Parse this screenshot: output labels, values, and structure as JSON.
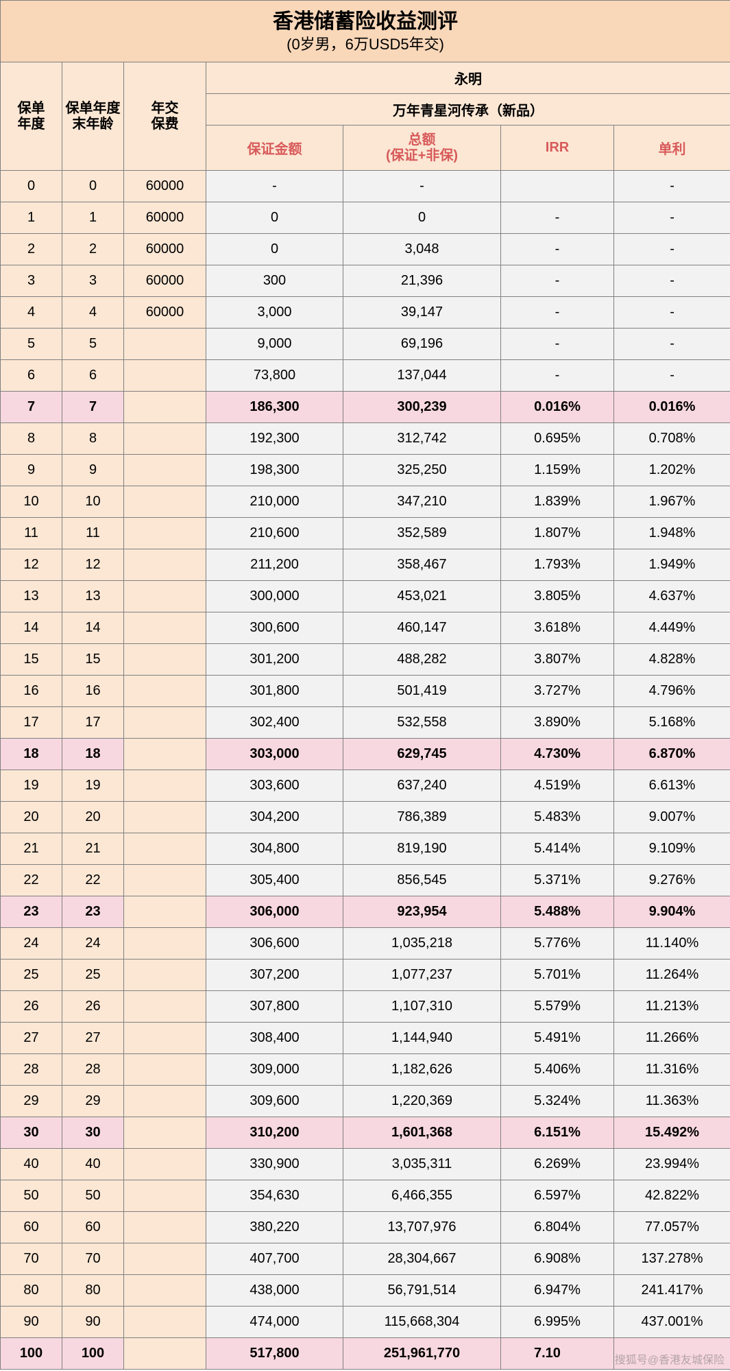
{
  "title": {
    "main": "香港储蓄险收益测评",
    "sub": "(0岁男，6万USD5年交)"
  },
  "headers": {
    "col1": "保单\n年度",
    "col2": "保单年度末年龄",
    "col3": "年交\n保费",
    "company": "永明",
    "product": "万年青星河传承（新品）",
    "m1": "保证金额",
    "m2a": "总额",
    "m2b": "(保证+非保)",
    "m3": "IRR",
    "m4": "单利"
  },
  "colors": {
    "title_bg": "#f9d7b9",
    "header_bg": "#fbe7d4",
    "pink_bg": "#f8d8e0",
    "normal_bg": "#f2f2f2",
    "border": "#808080",
    "red_text": "#d85a5a"
  },
  "rows": [
    {
      "y": "0",
      "a": "0",
      "p": "60000",
      "g": "-",
      "t": "-",
      "irr": "",
      "si": "-",
      "hl": false
    },
    {
      "y": "1",
      "a": "1",
      "p": "60000",
      "g": "0",
      "t": "0",
      "irr": "-",
      "si": "-",
      "hl": false
    },
    {
      "y": "2",
      "a": "2",
      "p": "60000",
      "g": "0",
      "t": "3,048",
      "irr": "-",
      "si": "-",
      "hl": false
    },
    {
      "y": "3",
      "a": "3",
      "p": "60000",
      "g": "300",
      "t": "21,396",
      "irr": "-",
      "si": "-",
      "hl": false
    },
    {
      "y": "4",
      "a": "4",
      "p": "60000",
      "g": "3,000",
      "t": "39,147",
      "irr": "-",
      "si": "-",
      "hl": false
    },
    {
      "y": "5",
      "a": "5",
      "p": "",
      "g": "9,000",
      "t": "69,196",
      "irr": "-",
      "si": "-",
      "hl": false
    },
    {
      "y": "6",
      "a": "6",
      "p": "",
      "g": "73,800",
      "t": "137,044",
      "irr": "-",
      "si": "-",
      "hl": false
    },
    {
      "y": "7",
      "a": "7",
      "p": "",
      "g": "186,300",
      "t": "300,239",
      "irr": "0.016%",
      "si": "0.016%",
      "hl": true
    },
    {
      "y": "8",
      "a": "8",
      "p": "",
      "g": "192,300",
      "t": "312,742",
      "irr": "0.695%",
      "si": "0.708%",
      "hl": false
    },
    {
      "y": "9",
      "a": "9",
      "p": "",
      "g": "198,300",
      "t": "325,250",
      "irr": "1.159%",
      "si": "1.202%",
      "hl": false
    },
    {
      "y": "10",
      "a": "10",
      "p": "",
      "g": "210,000",
      "t": "347,210",
      "irr": "1.839%",
      "si": "1.967%",
      "hl": false
    },
    {
      "y": "11",
      "a": "11",
      "p": "",
      "g": "210,600",
      "t": "352,589",
      "irr": "1.807%",
      "si": "1.948%",
      "hl": false
    },
    {
      "y": "12",
      "a": "12",
      "p": "",
      "g": "211,200",
      "t": "358,467",
      "irr": "1.793%",
      "si": "1.949%",
      "hl": false
    },
    {
      "y": "13",
      "a": "13",
      "p": "",
      "g": "300,000",
      "t": "453,021",
      "irr": "3.805%",
      "si": "4.637%",
      "hl": false
    },
    {
      "y": "14",
      "a": "14",
      "p": "",
      "g": "300,600",
      "t": "460,147",
      "irr": "3.618%",
      "si": "4.449%",
      "hl": false
    },
    {
      "y": "15",
      "a": "15",
      "p": "",
      "g": "301,200",
      "t": "488,282",
      "irr": "3.807%",
      "si": "4.828%",
      "hl": false
    },
    {
      "y": "16",
      "a": "16",
      "p": "",
      "g": "301,800",
      "t": "501,419",
      "irr": "3.727%",
      "si": "4.796%",
      "hl": false
    },
    {
      "y": "17",
      "a": "17",
      "p": "",
      "g": "302,400",
      "t": "532,558",
      "irr": "3.890%",
      "si": "5.168%",
      "hl": false
    },
    {
      "y": "18",
      "a": "18",
      "p": "",
      "g": "303,000",
      "t": "629,745",
      "irr": "4.730%",
      "si": "6.870%",
      "hl": true
    },
    {
      "y": "19",
      "a": "19",
      "p": "",
      "g": "303,600",
      "t": "637,240",
      "irr": "4.519%",
      "si": "6.613%",
      "hl": false
    },
    {
      "y": "20",
      "a": "20",
      "p": "",
      "g": "304,200",
      "t": "786,389",
      "irr": "5.483%",
      "si": "9.007%",
      "hl": false
    },
    {
      "y": "21",
      "a": "21",
      "p": "",
      "g": "304,800",
      "t": "819,190",
      "irr": "5.414%",
      "si": "9.109%",
      "hl": false
    },
    {
      "y": "22",
      "a": "22",
      "p": "",
      "g": "305,400",
      "t": "856,545",
      "irr": "5.371%",
      "si": "9.276%",
      "hl": false
    },
    {
      "y": "23",
      "a": "23",
      "p": "",
      "g": "306,000",
      "t": "923,954",
      "irr": "5.488%",
      "si": "9.904%",
      "hl": true
    },
    {
      "y": "24",
      "a": "24",
      "p": "",
      "g": "306,600",
      "t": "1,035,218",
      "irr": "5.776%",
      "si": "11.140%",
      "hl": false
    },
    {
      "y": "25",
      "a": "25",
      "p": "",
      "g": "307,200",
      "t": "1,077,237",
      "irr": "5.701%",
      "si": "11.264%",
      "hl": false
    },
    {
      "y": "26",
      "a": "26",
      "p": "",
      "g": "307,800",
      "t": "1,107,310",
      "irr": "5.579%",
      "si": "11.213%",
      "hl": false
    },
    {
      "y": "27",
      "a": "27",
      "p": "",
      "g": "308,400",
      "t": "1,144,940",
      "irr": "5.491%",
      "si": "11.266%",
      "hl": false
    },
    {
      "y": "28",
      "a": "28",
      "p": "",
      "g": "309,000",
      "t": "1,182,626",
      "irr": "5.406%",
      "si": "11.316%",
      "hl": false
    },
    {
      "y": "29",
      "a": "29",
      "p": "",
      "g": "309,600",
      "t": "1,220,369",
      "irr": "5.324%",
      "si": "11.363%",
      "hl": false
    },
    {
      "y": "30",
      "a": "30",
      "p": "",
      "g": "310,200",
      "t": "1,601,368",
      "irr": "6.151%",
      "si": "15.492%",
      "hl": true
    },
    {
      "y": "40",
      "a": "40",
      "p": "",
      "g": "330,900",
      "t": "3,035,311",
      "irr": "6.269%",
      "si": "23.994%",
      "hl": false
    },
    {
      "y": "50",
      "a": "50",
      "p": "",
      "g": "354,630",
      "t": "6,466,355",
      "irr": "6.597%",
      "si": "42.822%",
      "hl": false
    },
    {
      "y": "60",
      "a": "60",
      "p": "",
      "g": "380,220",
      "t": "13,707,976",
      "irr": "6.804%",
      "si": "77.057%",
      "hl": false
    },
    {
      "y": "70",
      "a": "70",
      "p": "",
      "g": "407,700",
      "t": "28,304,667",
      "irr": "6.908%",
      "si": "137.278%",
      "hl": false
    },
    {
      "y": "80",
      "a": "80",
      "p": "",
      "g": "438,000",
      "t": "56,791,514",
      "irr": "6.947%",
      "si": "241.417%",
      "hl": false
    },
    {
      "y": "90",
      "a": "90",
      "p": "",
      "g": "474,000",
      "t": "115,668,304",
      "irr": "6.995%",
      "si": "437.001%",
      "hl": false
    },
    {
      "y": "100",
      "a": "100",
      "p": "",
      "g": "517,800",
      "t": "251,961,770",
      "irr": "7.10",
      "si": "",
      "hl": true,
      "cut": true
    }
  ],
  "watermark": "搜狐号@香港友城保险"
}
